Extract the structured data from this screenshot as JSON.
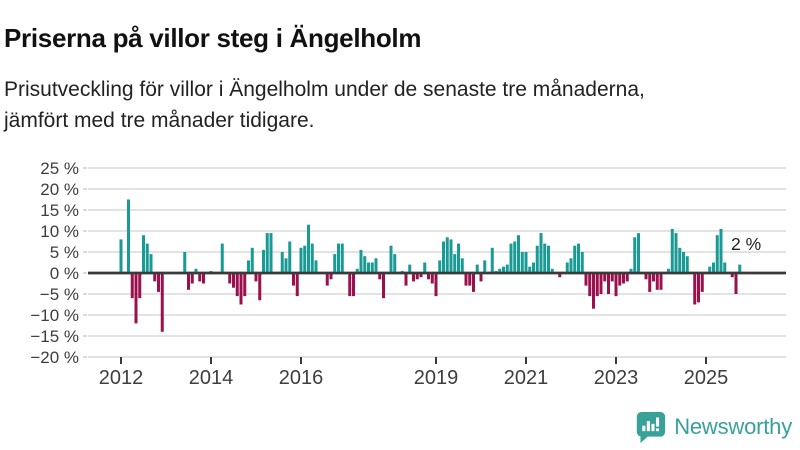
{
  "header": {
    "title": "Priserna på villor steg i Ängelholm",
    "subtitle_line1": "Prisutveckling för villor i Ängelholm under de senaste tre månaderna,",
    "subtitle_line2": "jämfört med tre månader tidigare."
  },
  "chart_data": {
    "type": "bar",
    "title": "Prisutveckling för villor i Ängelholm, jämfört med tre månader tidigare",
    "unit": "%",
    "grid": true,
    "legend": false,
    "ylim": [
      -20,
      25
    ],
    "y_axis": {
      "ticks": [
        {
          "value": 25,
          "label": "25 %"
        },
        {
          "value": 20,
          "label": "20 %"
        },
        {
          "value": 15,
          "label": "15 %"
        },
        {
          "value": 10,
          "label": "10 %"
        },
        {
          "value": 5,
          "label": "5 %"
        },
        {
          "value": 0,
          "label": "0 %"
        },
        {
          "value": -5,
          "label": "−5 %"
        },
        {
          "value": -10,
          "label": "−10 %"
        },
        {
          "value": -15,
          "label": "−15 %"
        },
        {
          "value": -20,
          "label": "−20 %"
        }
      ]
    },
    "x_axis": {
      "start": "2012-01",
      "interval": "month",
      "ticks": [
        {
          "label": "2012",
          "month_index": 0
        },
        {
          "label": "2014",
          "month_index": 24
        },
        {
          "label": "2016",
          "month_index": 48
        },
        {
          "label": "2019",
          "month_index": 84
        },
        {
          "label": "2021",
          "month_index": 108
        },
        {
          "label": "2023",
          "month_index": 132
        },
        {
          "label": "2025",
          "month_index": 156
        }
      ]
    },
    "values": [
      8,
      0,
      17.5,
      -6,
      -12,
      -6,
      9,
      7,
      4.5,
      -2,
      -4.5,
      -14,
      0,
      0,
      0,
      0,
      0,
      5,
      -4,
      -2.5,
      1,
      -2,
      -2.5,
      0,
      0.5,
      0,
      0,
      7,
      0,
      -2.5,
      -3.5,
      -5.5,
      -7.5,
      -5.5,
      3,
      6,
      -2,
      -6.5,
      5.5,
      9.5,
      9.5,
      0,
      0,
      5,
      3.5,
      7.5,
      -3,
      -5.5,
      6,
      6.5,
      11.5,
      7,
      3,
      0,
      0,
      -3,
      -1.5,
      4.5,
      7,
      7,
      0,
      -5.5,
      -5.5,
      1,
      5.5,
      4,
      2.5,
      2.5,
      3.5,
      -1.5,
      -6,
      0,
      6.5,
      4.5,
      0,
      0.5,
      -3,
      2,
      -2,
      -1.5,
      -1,
      2.5,
      -1.5,
      -2.5,
      -5.5,
      3,
      7.5,
      8.5,
      8,
      4.5,
      7,
      3.5,
      -3,
      -3,
      -4.5,
      2,
      -2,
      3,
      0,
      6,
      0.5,
      1,
      1.5,
      2,
      7,
      7.5,
      9,
      5,
      5,
      1.5,
      2.5,
      6.5,
      9.5,
      7,
      6.5,
      1,
      0,
      -1,
      0,
      2.5,
      3.5,
      6.5,
      7,
      5,
      -3,
      -5.5,
      -8.5,
      -5.5,
      -5,
      -2,
      -5,
      -2,
      -5.5,
      -3,
      -2.5,
      -2,
      1,
      8.5,
      9.5,
      0,
      -1.5,
      -4.5,
      -2,
      -4,
      -4,
      0,
      1,
      10.5,
      9.5,
      6,
      5,
      4,
      0,
      -7.5,
      -7,
      -4.5,
      0,
      1.5,
      2.5,
      9,
      10.5,
      2.5,
      0,
      -1,
      -5,
      2
    ],
    "annotation": {
      "text": "2 %",
      "value": 2
    },
    "colors": {
      "positive": "#1a9a94",
      "negative": "#9a104d",
      "zero_line": "#3a3a3a",
      "gridline": "#e3e3e3",
      "axis_text": "#3e3e3e",
      "annotation_text": "#222222"
    }
  },
  "footer": {
    "brand": "Newsworthy",
    "brand_color": "#38a198"
  }
}
